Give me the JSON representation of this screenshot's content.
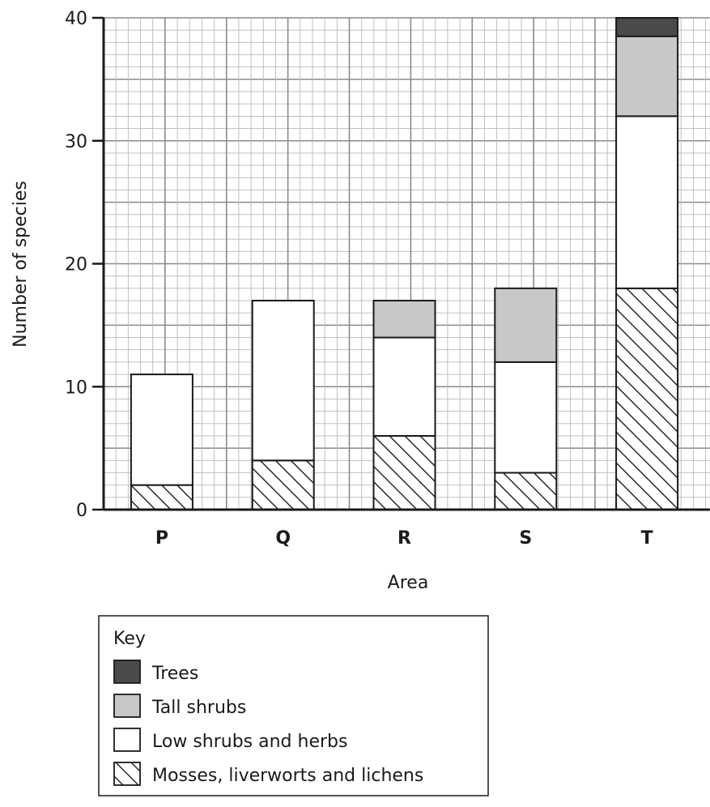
{
  "chart_data": {
    "type": "bar",
    "stacked": true,
    "categories": [
      "P",
      "Q",
      "R",
      "S",
      "T"
    ],
    "xlabel": "Area",
    "ylabel": "Number of species",
    "ylim": [
      0,
      40
    ],
    "yticks": [
      0,
      10,
      20,
      30,
      40
    ],
    "grid": true,
    "series": [
      {
        "name": "Mosses, liverworts and lichens",
        "values": [
          2,
          4,
          6,
          3,
          18
        ],
        "pattern": "hatch",
        "color": "#ffffff"
      },
      {
        "name": "Low shrubs and herbs",
        "values": [
          9,
          13,
          8,
          9,
          14
        ],
        "pattern": "solid",
        "color": "#ffffff"
      },
      {
        "name": "Tall shrubs",
        "values": [
          0,
          0,
          3,
          6,
          6.5
        ],
        "pattern": "solid",
        "color": "#c8c8c8"
      },
      {
        "name": "Trees",
        "values": [
          0,
          0,
          0,
          0,
          1.5
        ],
        "pattern": "solid",
        "color": "#4a4a4a"
      }
    ]
  },
  "key": {
    "title": "Key",
    "items": [
      {
        "label": "Trees",
        "series_index": 3
      },
      {
        "label": "Tall shrubs",
        "series_index": 2
      },
      {
        "label": "Low shrubs and herbs",
        "series_index": 1
      },
      {
        "label": "Mosses, liverworts and lichens",
        "series_index": 0
      }
    ]
  }
}
